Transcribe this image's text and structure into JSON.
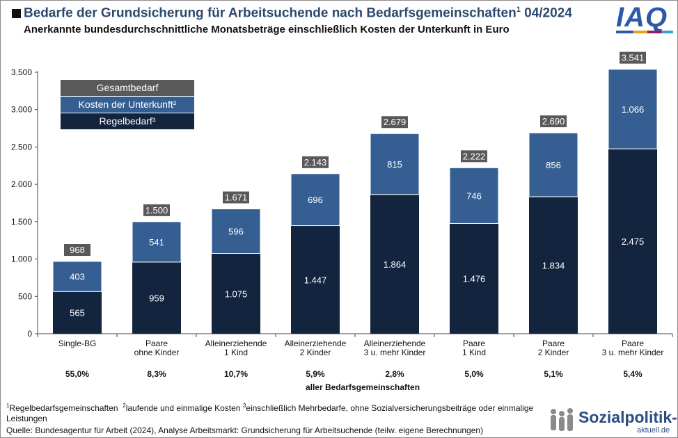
{
  "header": {
    "title": "Bedarfe der Grundsicherung für Arbeitsuchende nach Bedarfsgemeinschaften",
    "title_sup": "1",
    "title_date": " 04/2024",
    "subtitle": "Anerkannte bundesdurchschnittliche Monatsbeträge einschließlich Kosten der Unterkunft in Euro",
    "logo": "IAQ"
  },
  "chart_data": {
    "type": "bar",
    "stacked": true,
    "categories": [
      [
        "Single-BG"
      ],
      [
        "Paare",
        "ohne Kinder"
      ],
      [
        "Alleinerziehende",
        "1 Kind"
      ],
      [
        "Alleinerziehende",
        "2 Kinder"
      ],
      [
        "Alleinerziehende",
        "3 u. mehr Kinder"
      ],
      [
        "Paare",
        "1 Kind"
      ],
      [
        "Paare",
        "2 Kinder"
      ],
      [
        "Paare",
        "3 u. mehr Kinder"
      ]
    ],
    "series": [
      {
        "name": "Regelbedarf³",
        "values": [
          565,
          959,
          1075,
          1447,
          1864,
          1476,
          1834,
          2475
        ],
        "labels": [
          "565",
          "959",
          "1.075",
          "1.447",
          "1.864",
          "1.476",
          "1.834",
          "2.475"
        ],
        "color": "#13243f"
      },
      {
        "name": "Kosten der Unterkunft²",
        "values": [
          403,
          541,
          596,
          696,
          815,
          746,
          856,
          1066
        ],
        "labels": [
          "403",
          "541",
          "596",
          "696",
          "815",
          "746",
          "856",
          "1.066"
        ],
        "color": "#355f92"
      }
    ],
    "totals": {
      "name": "Gesamtbedarf",
      "values": [
        968,
        1500,
        1671,
        2143,
        2679,
        2222,
        2690,
        3541
      ],
      "labels": [
        "968",
        "1.500",
        "1.671",
        "2.143",
        "2.679",
        "2.222",
        "2.690",
        "3.541"
      ],
      "color": "#595959"
    },
    "ylim": [
      0,
      3500
    ],
    "yticks": [
      0,
      500,
      1000,
      1500,
      2000,
      2500,
      3000,
      3500
    ],
    "ytick_labels": [
      "0",
      "500",
      "1.000",
      "1.500",
      "2.000",
      "2.500",
      "3.000",
      "3.500"
    ],
    "grid": false,
    "legend": {
      "placement": "top-left",
      "entries": [
        "Gesamtbedarf",
        "Kosten der Unterkunft²",
        "Regelbedarf³"
      ]
    },
    "shares": [
      "55,0%",
      "8,3%",
      "10,7%",
      "5,9%",
      "2,8%",
      "5,0%",
      "5,1%",
      "5,4%"
    ],
    "shares_label": "aller Bedarfsgemeinschaften"
  },
  "footer": {
    "footnote_1": "Regelbedarfsgemeinschaften",
    "footnote_2": "laufende und einmalige Kosten",
    "footnote_3": "einschließlich Mehrbedarfe, ohne Sozialversicherungsbeiträge oder einmalige Leistungen",
    "source": "Quelle: Bundesagentur für Arbeit (2024), Analyse Arbeitsmarkt: Grundsicherung für Arbeitsuchende (teilw. eigene Berechnungen)",
    "logo_text": "Sozialpolitik-",
    "logo_sub": "aktuell.de"
  }
}
